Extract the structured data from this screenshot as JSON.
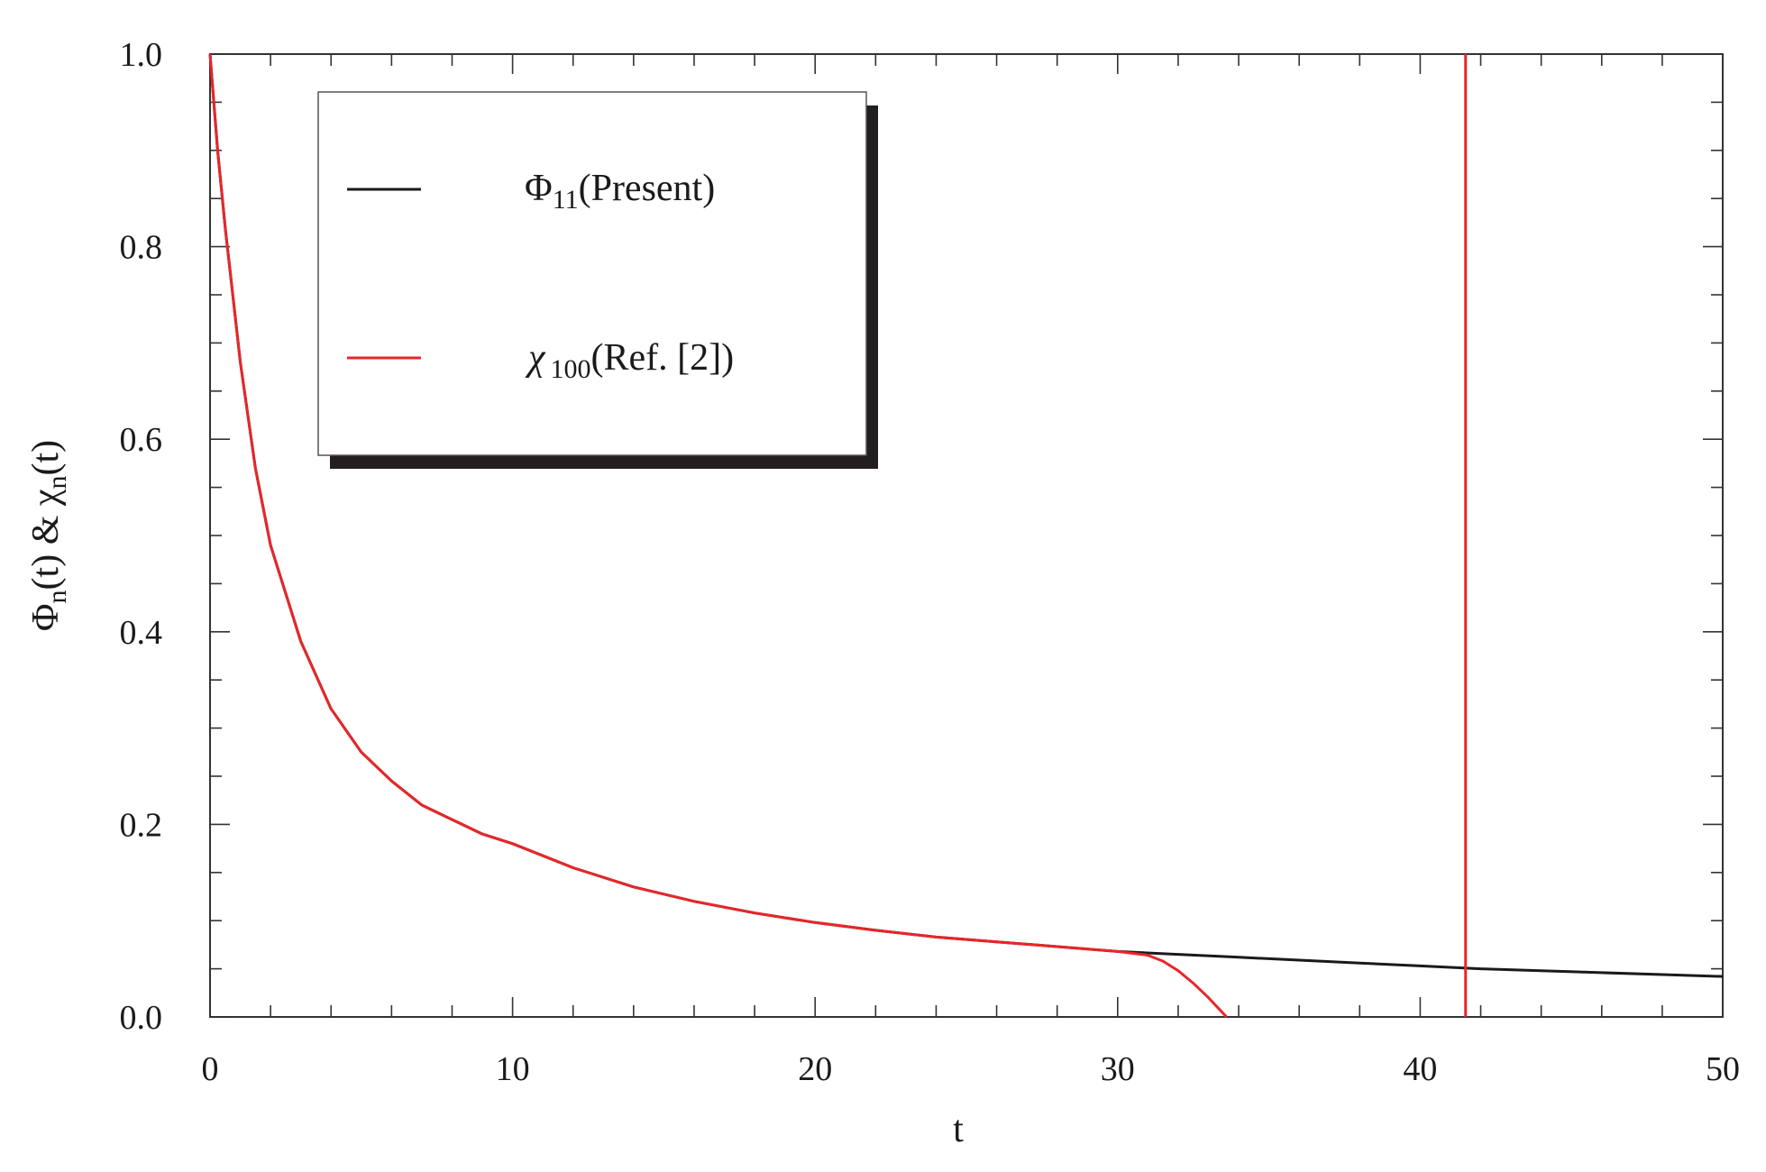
{
  "chart_data": {
    "type": "line",
    "xlabel": "t",
    "ylabel": {
      "parts": [
        {
          "text": "Φ",
          "sub": "n"
        },
        {
          "text": "(t) & χ",
          "sub": "n"
        },
        {
          "text": "(t)",
          "sub": ""
        }
      ]
    },
    "xlim": [
      0,
      50
    ],
    "ylim": [
      0,
      1.0
    ],
    "x_ticks": [
      "0",
      "10",
      "20",
      "30",
      "40",
      "50"
    ],
    "y_ticks": [
      "0.0",
      "0.2",
      "0.4",
      "0.6",
      "0.8",
      "1.0"
    ],
    "grid": false,
    "legend_position": "top-left",
    "vertical_line": {
      "x": 41.5,
      "color": "#e8262a"
    },
    "series": [
      {
        "name": "Φ11(Present)",
        "legend": {
          "symbol": "Φ",
          "sub": "11",
          "rest": "(Present)"
        },
        "color": "#1a1a1a",
        "x": [
          0,
          0.25,
          0.5,
          1,
          1.5,
          2,
          3,
          4,
          5,
          6,
          7,
          8,
          9,
          10,
          12,
          14,
          16,
          18,
          20,
          22,
          24,
          26,
          28,
          30,
          32,
          34,
          36,
          38,
          40,
          42,
          44,
          46,
          48,
          50
        ],
        "y": [
          1.0,
          0.9,
          0.82,
          0.68,
          0.57,
          0.49,
          0.39,
          0.32,
          0.275,
          0.245,
          0.22,
          0.205,
          0.19,
          0.18,
          0.155,
          0.135,
          0.12,
          0.108,
          0.098,
          0.09,
          0.083,
          0.078,
          0.073,
          0.068,
          0.065,
          0.062,
          0.059,
          0.056,
          0.053,
          0.05,
          0.048,
          0.046,
          0.044,
          0.042
        ]
      },
      {
        "name": "χ100(Ref. [2])",
        "legend": {
          "symbol": "χ",
          "sub": "100",
          "rest": "(Ref. [2])"
        },
        "color": "#e8262a",
        "x": [
          0,
          0.25,
          0.5,
          1,
          1.5,
          2,
          3,
          4,
          5,
          6,
          7,
          8,
          9,
          10,
          12,
          14,
          16,
          18,
          20,
          22,
          24,
          26,
          28,
          30,
          31,
          31.5,
          32,
          32.5,
          33,
          33.3,
          33.6
        ],
        "y": [
          1.0,
          0.9,
          0.82,
          0.68,
          0.57,
          0.49,
          0.39,
          0.32,
          0.275,
          0.245,
          0.22,
          0.205,
          0.19,
          0.18,
          0.155,
          0.135,
          0.12,
          0.108,
          0.098,
          0.09,
          0.083,
          0.078,
          0.073,
          0.068,
          0.064,
          0.058,
          0.048,
          0.035,
          0.02,
          0.01,
          0.0
        ]
      }
    ]
  }
}
